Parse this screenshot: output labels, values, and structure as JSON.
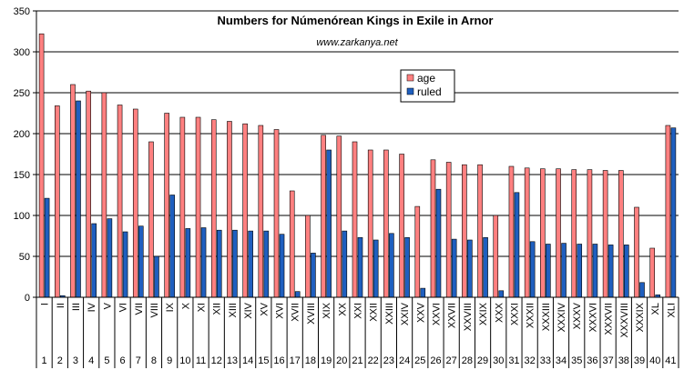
{
  "chart_data": {
    "type": "bar",
    "title": "Numbers for Númenórean Kings in Exile in Arnor",
    "subtitle": "www.zarkanya.net",
    "ylim": [
      0,
      350
    ],
    "yticks": [
      0,
      50,
      100,
      150,
      200,
      250,
      300,
      350
    ],
    "grid": "horizontal",
    "legend_position": "top-center",
    "categories_roman": [
      "I",
      "II",
      "III",
      "IV",
      "V",
      "VI",
      "VII",
      "VIII",
      "IX",
      "X",
      "XI",
      "XII",
      "XIII",
      "XIV",
      "XV",
      "XVI",
      "XVII",
      "XVIII",
      "XIX",
      "XX",
      "XXI",
      "XXII",
      "XXIII",
      "XXIV",
      "XXV",
      "XXVI",
      "XXVII",
      "XXVIII",
      "XXIX",
      "XXX",
      "XXXI",
      "XXXII",
      "XXXIII",
      "XXXIV",
      "XXXV",
      "XXXVI",
      "XXXVII",
      "XXXVIII",
      "XXXIX",
      "XL",
      "XLI"
    ],
    "categories": [
      "1",
      "2",
      "3",
      "4",
      "5",
      "6",
      "7",
      "8",
      "9",
      "10",
      "11",
      "12",
      "13",
      "14",
      "15",
      "16",
      "17",
      "18",
      "19",
      "20",
      "21",
      "22",
      "23",
      "24",
      "25",
      "26",
      "27",
      "28",
      "29",
      "30",
      "31",
      "32",
      "33",
      "34",
      "35",
      "36",
      "37",
      "38",
      "39",
      "40",
      "41"
    ],
    "series": [
      {
        "name": "age",
        "color": "#ff8080",
        "values": [
          322,
          234,
          260,
          252,
          250,
          235,
          230,
          190,
          225,
          220,
          220,
          217,
          215,
          212,
          210,
          205,
          130,
          100,
          198,
          197,
          190,
          180,
          180,
          175,
          111,
          168,
          165,
          162,
          162,
          100,
          160,
          158,
          157,
          157,
          156,
          156,
          155,
          155,
          110,
          60,
          210
        ]
      },
      {
        "name": "ruled",
        "color": "#1f5fbf",
        "values": [
          121,
          2,
          240,
          90,
          96,
          80,
          87,
          50,
          125,
          84,
          85,
          82,
          82,
          81,
          81,
          77,
          7,
          54,
          180,
          81,
          73,
          70,
          78,
          73,
          11,
          132,
          71,
          70,
          73,
          8,
          128,
          68,
          65,
          66,
          65,
          65,
          64,
          64,
          18,
          3,
          207
        ]
      }
    ]
  }
}
